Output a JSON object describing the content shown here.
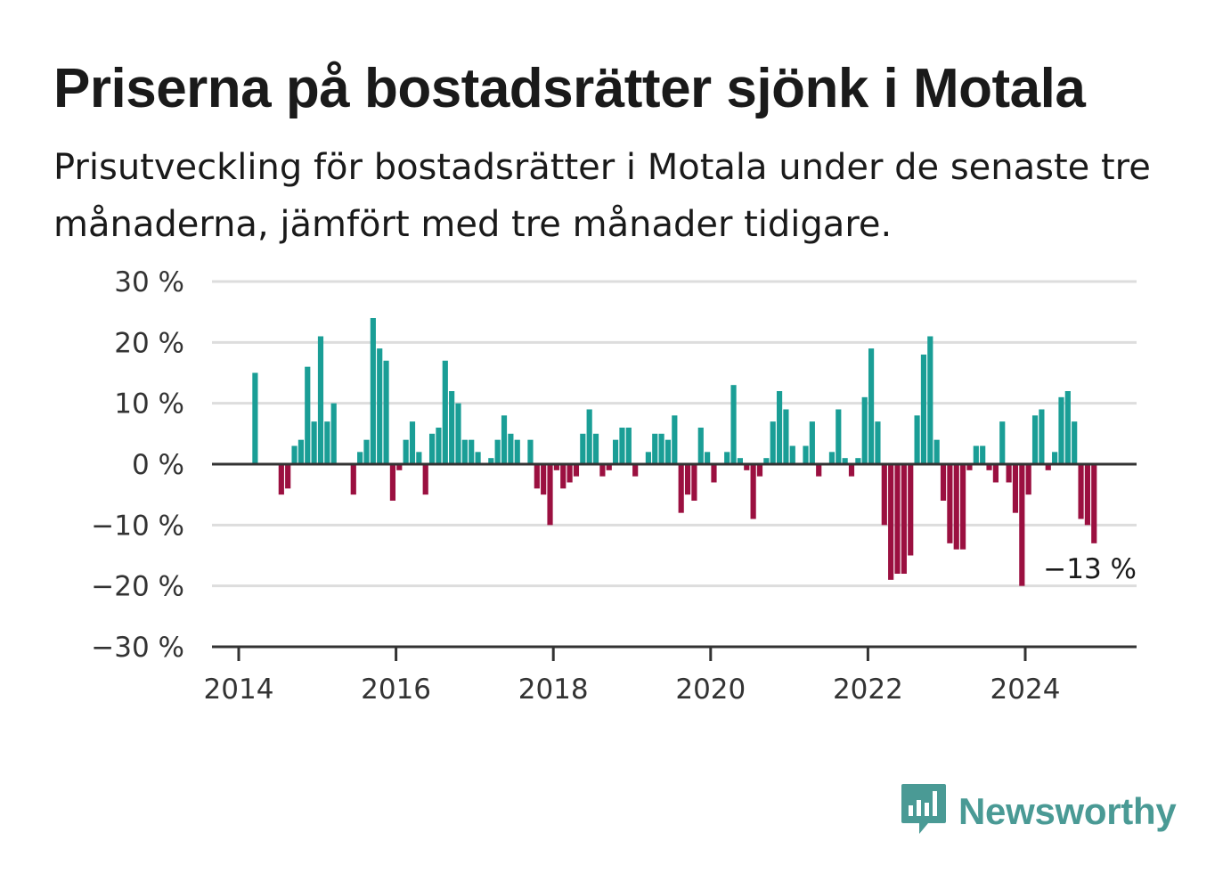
{
  "header": {
    "title": "Priserna på bostadsrätter sjönk i Motala",
    "subtitle": "Prisutveckling för bostadsrätter i Motala under de senaste tre månaderna, jämfört med tre månader tidigare."
  },
  "brand": {
    "name": "Newsworthy",
    "icon": "newsworthy-chat-bars-icon"
  },
  "colors": {
    "positive": "#1a9e96",
    "negative": "#9b1040",
    "grid": "#dddddd",
    "axis": "#333333"
  },
  "chart_data": {
    "type": "bar",
    "title": "Priserna på bostadsrätter sjönk i Motala",
    "subtitle": "Prisutveckling för bostadsrätter i Motala under de senaste tre månaderna, jämfört med tre månader tidigare.",
    "xlabel": "",
    "ylabel": "",
    "ylim": [
      -30,
      30
    ],
    "xlim": [
      2013.85,
      2025.4
    ],
    "y_ticks": [
      30,
      20,
      10,
      0,
      -10,
      -20,
      -30
    ],
    "y_tick_labels": [
      "30 %",
      "20 %",
      "10 %",
      "0 %",
      "−10 %",
      "−20 %",
      "−30 %"
    ],
    "x_ticks": [
      2014,
      2016,
      2018,
      2020,
      2022,
      2024
    ],
    "x_tick_labels": [
      "2014",
      "2016",
      "2018",
      "2020",
      "2022",
      "2024"
    ],
    "grid": true,
    "end_label": "−13 %",
    "unit": "%",
    "x": [
      "2014-03",
      "2014-04",
      "2014-05",
      "2014-06",
      "2014-07",
      "2014-08",
      "2014-09",
      "2014-10",
      "2014-11",
      "2014-12",
      "2015-01",
      "2015-02",
      "2015-03",
      "2015-04",
      "2015-05",
      "2015-06",
      "2015-07",
      "2015-08",
      "2015-09",
      "2015-10",
      "2015-11",
      "2015-12",
      "2016-01",
      "2016-02",
      "2016-03",
      "2016-04",
      "2016-05",
      "2016-06",
      "2016-07",
      "2016-08",
      "2016-09",
      "2016-10",
      "2016-11",
      "2016-12",
      "2017-01",
      "2017-02",
      "2017-03",
      "2017-04",
      "2017-05",
      "2017-06",
      "2017-07",
      "2017-08",
      "2017-09",
      "2017-10",
      "2017-11",
      "2017-12",
      "2018-01",
      "2018-02",
      "2018-03",
      "2018-04",
      "2018-05",
      "2018-06",
      "2018-07",
      "2018-08",
      "2018-09",
      "2018-10",
      "2018-11",
      "2018-12",
      "2019-01",
      "2019-02",
      "2019-03",
      "2019-04",
      "2019-05",
      "2019-06",
      "2019-07",
      "2019-08",
      "2019-09",
      "2019-10",
      "2019-11",
      "2019-12",
      "2020-01",
      "2020-02",
      "2020-03",
      "2020-04",
      "2020-05",
      "2020-06",
      "2020-07",
      "2020-08",
      "2020-09",
      "2020-10",
      "2020-11",
      "2020-12",
      "2021-01",
      "2021-02",
      "2021-03",
      "2021-04",
      "2021-05",
      "2021-06",
      "2021-07",
      "2021-08",
      "2021-09",
      "2021-10",
      "2021-11",
      "2021-12",
      "2022-01",
      "2022-02",
      "2022-03",
      "2022-04",
      "2022-05",
      "2022-06",
      "2022-07",
      "2022-08",
      "2022-09",
      "2022-10",
      "2022-11",
      "2022-12",
      "2023-01",
      "2023-02",
      "2023-03",
      "2023-04",
      "2023-05",
      "2023-06",
      "2023-07",
      "2023-08",
      "2023-09",
      "2023-10",
      "2023-11",
      "2023-12",
      "2024-01",
      "2024-02",
      "2024-03",
      "2024-04",
      "2024-05",
      "2024-06",
      "2024-07",
      "2024-08",
      "2024-09",
      "2024-10",
      "2024-11"
    ],
    "values": [
      15,
      0,
      0,
      0,
      -5,
      -4,
      3,
      4,
      16,
      7,
      21,
      7,
      10,
      0,
      0,
      -5,
      2,
      4,
      24,
      19,
      17,
      -6,
      -1,
      4,
      7,
      2,
      -5,
      5,
      6,
      17,
      12,
      10,
      4,
      4,
      2,
      0,
      1,
      4,
      8,
      5,
      4,
      0,
      4,
      -4,
      -5,
      -10,
      -1,
      -4,
      -3,
      -2,
      5,
      9,
      5,
      -2,
      -1,
      4,
      6,
      6,
      -2,
      0,
      2,
      5,
      5,
      4,
      8,
      -8,
      -5,
      -6,
      6,
      2,
      -3,
      0,
      2,
      13,
      1,
      -1,
      -9,
      -2,
      1,
      7,
      12,
      9,
      3,
      0,
      3,
      7,
      -2,
      0,
      2,
      9,
      1,
      -2,
      1,
      11,
      19,
      7,
      -10,
      -19,
      -18,
      -18,
      -15,
      8,
      18,
      21,
      4,
      -6,
      -13,
      -14,
      -14,
      -1,
      3,
      3,
      -1,
      -3,
      7,
      -3,
      -8,
      -20,
      -5,
      8,
      9,
      -1,
      2,
      11,
      12,
      7,
      -9,
      -10,
      -13
    ]
  }
}
